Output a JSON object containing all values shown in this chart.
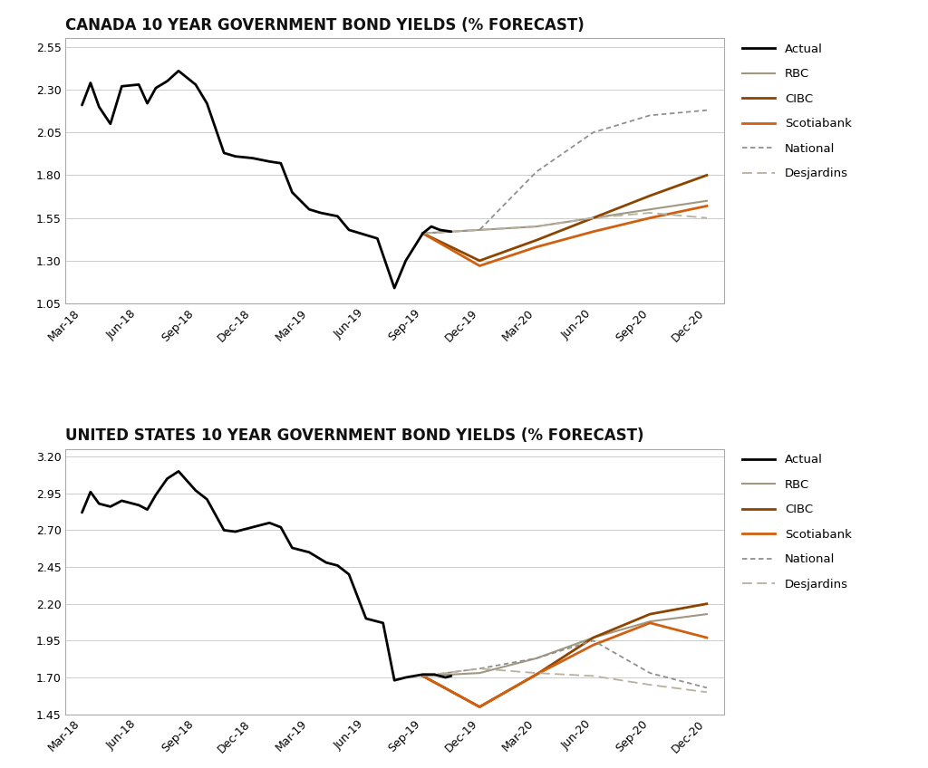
{
  "canada_title": "CANADA 10 YEAR GOVERNMENT BOND YIELDS (% FORECAST)",
  "us_title": "UNITED STATES 10 YEAR GOVERNMENT BOND YIELDS (% FORECAST)",
  "x_labels": [
    "Mar-18",
    "Jun-18",
    "Sep-18",
    "Dec-18",
    "Mar-19",
    "Jun-19",
    "Sep-19",
    "Dec-19",
    "Mar-20",
    "Jun-20",
    "Sep-20",
    "Dec-20"
  ],
  "canada_actual_x": [
    0,
    0.15,
    0.3,
    0.5,
    0.7,
    1.0,
    1.15,
    1.3,
    1.5,
    1.7,
    2.0,
    2.2,
    2.5,
    2.7,
    3.0,
    3.3,
    3.5,
    3.7,
    4.0,
    4.2,
    4.5,
    4.7,
    5.0,
    5.2,
    5.5,
    5.7,
    6.0,
    6.15,
    6.3,
    6.5
  ],
  "canada_actual_y": [
    2.21,
    2.34,
    2.2,
    2.1,
    2.32,
    2.33,
    2.22,
    2.31,
    2.35,
    2.41,
    2.33,
    2.22,
    1.93,
    1.91,
    1.9,
    1.88,
    1.87,
    1.7,
    1.6,
    1.58,
    1.56,
    1.48,
    1.45,
    1.43,
    1.14,
    1.3,
    1.46,
    1.5,
    1.48,
    1.47
  ],
  "canada_rbc_x": [
    6.0,
    7,
    8,
    9,
    10,
    11
  ],
  "canada_rbc_y": [
    1.46,
    1.48,
    1.5,
    1.55,
    1.6,
    1.65
  ],
  "canada_cibc_x": [
    6.0,
    7,
    8,
    9,
    10,
    11
  ],
  "canada_cibc_y": [
    1.46,
    1.3,
    1.42,
    1.55,
    1.68,
    1.8
  ],
  "canada_scotiabank_x": [
    6.0,
    7,
    8,
    9,
    10,
    11
  ],
  "canada_scotiabank_y": [
    1.46,
    1.27,
    1.38,
    1.47,
    1.55,
    1.62
  ],
  "canada_national_x": [
    6.0,
    7,
    8,
    9,
    10,
    11
  ],
  "canada_national_y": [
    1.46,
    1.48,
    1.82,
    2.05,
    2.15,
    2.18
  ],
  "canada_desjardins_x": [
    6.0,
    7,
    8,
    9,
    10,
    11
  ],
  "canada_desjardins_y": [
    1.46,
    1.48,
    1.5,
    1.55,
    1.58,
    1.55
  ],
  "us_actual_x": [
    0,
    0.15,
    0.3,
    0.5,
    0.7,
    1.0,
    1.15,
    1.3,
    1.5,
    1.7,
    2.0,
    2.2,
    2.5,
    2.7,
    3.0,
    3.3,
    3.5,
    3.7,
    4.0,
    4.3,
    4.5,
    4.7,
    5.0,
    5.3,
    5.5,
    5.7,
    6.0,
    6.2,
    6.4,
    6.5
  ],
  "us_actual_y": [
    2.82,
    2.96,
    2.88,
    2.86,
    2.9,
    2.87,
    2.84,
    2.94,
    3.05,
    3.1,
    2.97,
    2.91,
    2.7,
    2.69,
    2.72,
    2.75,
    2.72,
    2.58,
    2.55,
    2.48,
    2.46,
    2.4,
    2.1,
    2.07,
    1.68,
    1.7,
    1.72,
    1.72,
    1.7,
    1.71
  ],
  "us_rbc_x": [
    6.0,
    7,
    8,
    9,
    10,
    11
  ],
  "us_rbc_y": [
    1.71,
    1.73,
    1.83,
    1.97,
    2.08,
    2.13
  ],
  "us_cibc_x": [
    6.0,
    7,
    8,
    9,
    10,
    11
  ],
  "us_cibc_y": [
    1.71,
    1.5,
    1.72,
    1.97,
    2.13,
    2.2
  ],
  "us_scotiabank_x": [
    6.0,
    7,
    8,
    9,
    10,
    11
  ],
  "us_scotiabank_y": [
    1.71,
    1.5,
    1.72,
    1.92,
    2.07,
    1.97
  ],
  "us_national_x": [
    6.0,
    7,
    8,
    9,
    10,
    11
  ],
  "us_national_y": [
    1.71,
    1.76,
    1.83,
    1.95,
    1.73,
    1.63
  ],
  "us_desjardins_x": [
    6.0,
    7,
    8,
    9,
    10,
    11
  ],
  "us_desjardins_y": [
    1.71,
    1.76,
    1.73,
    1.71,
    1.65,
    1.6
  ],
  "color_actual": "#000000",
  "color_rbc": "#a09880",
  "color_cibc": "#8B4500",
  "color_scotiabank": "#D06010",
  "color_national": "#909090",
  "color_desjardins": "#b8b0a0",
  "canada_ylim": [
    1.05,
    2.6
  ],
  "canada_yticks": [
    1.05,
    1.3,
    1.55,
    1.8,
    2.05,
    2.3,
    2.55
  ],
  "us_ylim": [
    1.45,
    3.25
  ],
  "us_yticks": [
    1.45,
    1.7,
    1.95,
    2.2,
    2.45,
    2.7,
    2.95,
    3.2
  ],
  "bg_color": "#ffffff",
  "title_fontsize": 12,
  "tick_fontsize": 9,
  "legend_fontsize": 9.5
}
